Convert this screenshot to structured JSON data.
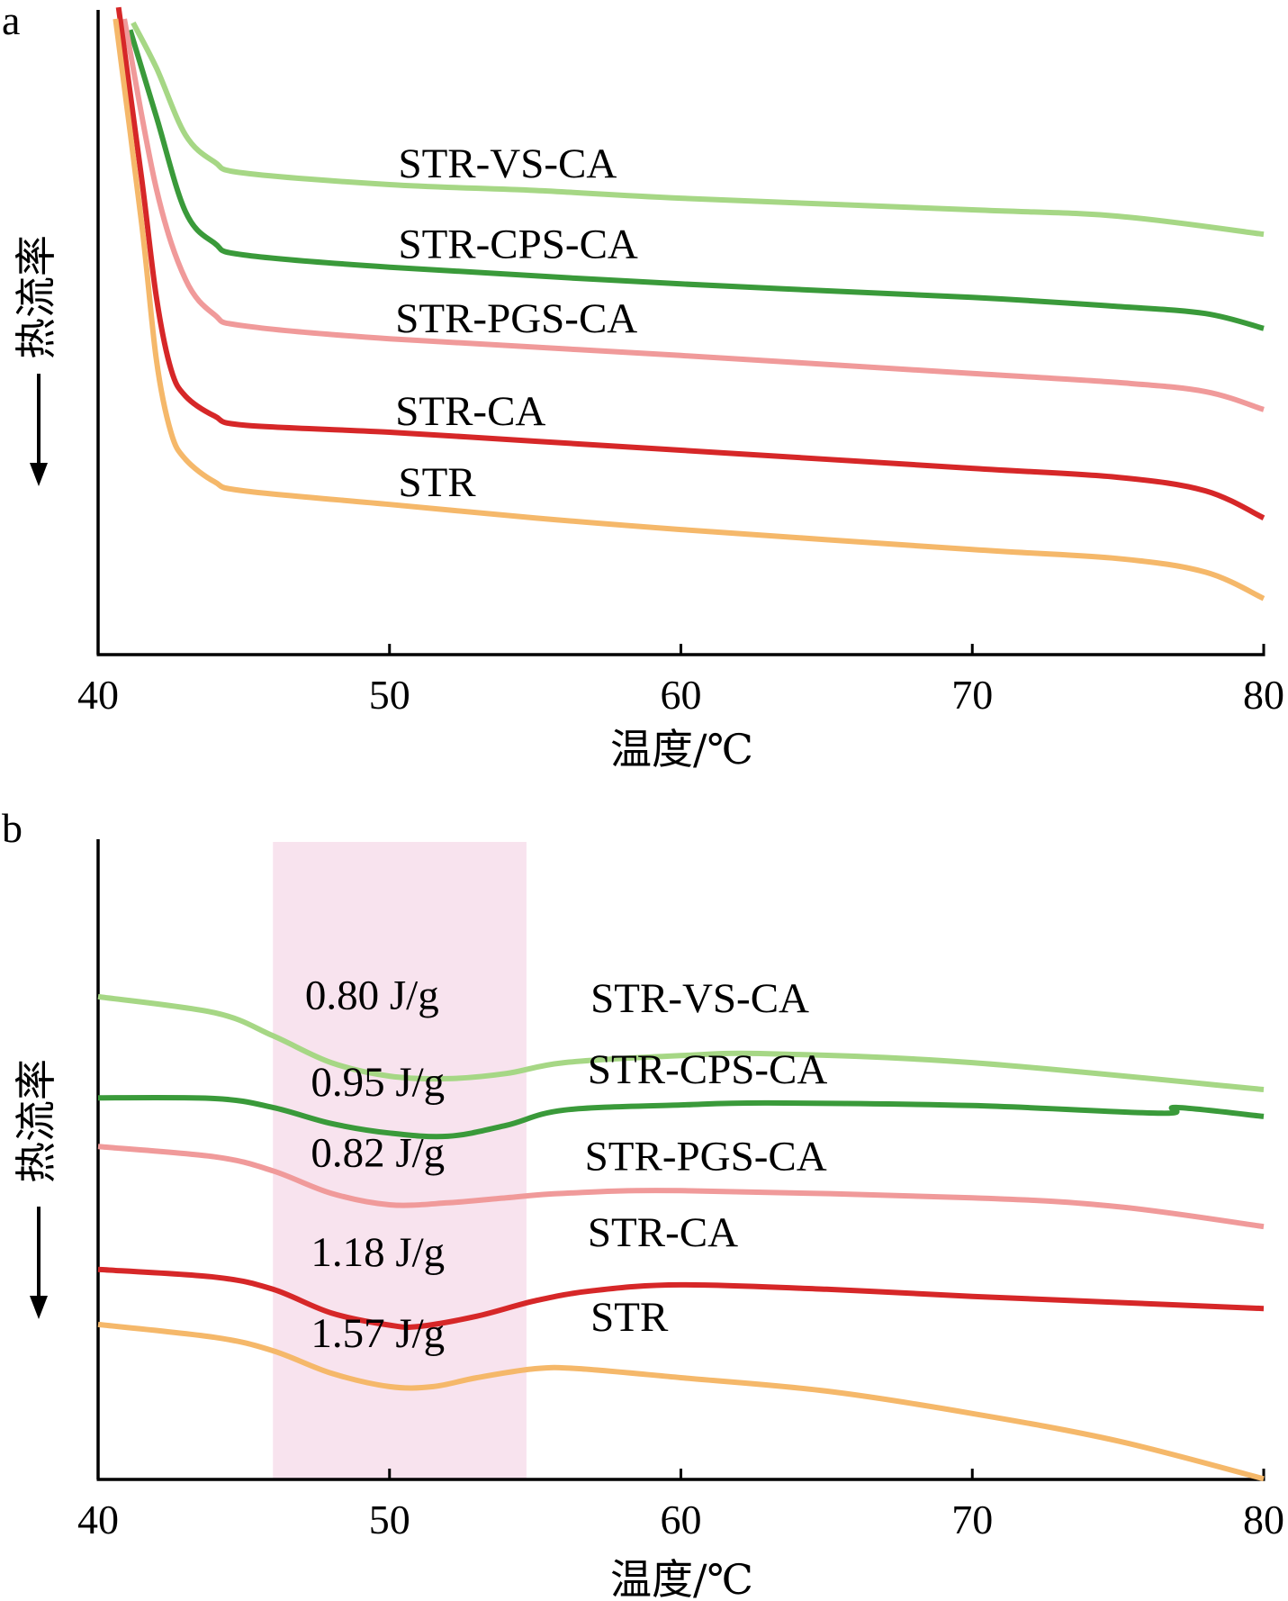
{
  "chart_data": [
    {
      "panel": "a",
      "type": "line",
      "title": "",
      "xlabel": "温度/℃",
      "ylabel": "热流率",
      "ylabel_arrow": "down",
      "xlim": [
        40,
        80
      ],
      "ylim": [
        0,
        100
      ],
      "y_units": "relative heat flow (arbitrary, exo-down)",
      "xticks": [
        40,
        50,
        60,
        70,
        80
      ],
      "grid": false,
      "legend": "inline labels",
      "series": [
        {
          "name": "STR-VS-CA",
          "color": "#a6d785",
          "x": [
            41.2,
            42,
            43,
            44,
            45,
            50,
            55,
            60,
            70,
            75,
            80
          ],
          "y": [
            98.0,
            91.0,
            80.6,
            76.4,
            74.7,
            72.9,
            72.0,
            70.8,
            69.0,
            68.0,
            65.2
          ],
          "label_at": [
            50.3,
            74.0
          ]
        },
        {
          "name": "STR-CPS-CA",
          "color": "#3a9a3a",
          "x": [
            41.1,
            42,
            43,
            44,
            45,
            50,
            60,
            70,
            75,
            78,
            80
          ],
          "y": [
            96.9,
            83.4,
            68.7,
            63.8,
            62.0,
            60.1,
            57.5,
            55.4,
            54.0,
            52.9,
            50.6
          ],
          "label_at": [
            50.3,
            61.5
          ]
        },
        {
          "name": "STR-PGS-CA",
          "color": "#f09a9a",
          "x": [
            40.9,
            42,
            43,
            44,
            45,
            50,
            60,
            70,
            75,
            78,
            80
          ],
          "y": [
            98.6,
            72.2,
            58.2,
            52.7,
            51.0,
            49.0,
            46.4,
            43.6,
            42.2,
            40.8,
            38.0
          ],
          "label_at": [
            50.2,
            50.0
          ]
        },
        {
          "name": "STR-CA",
          "color": "#d62728",
          "x": [
            40.7,
            41.5,
            42,
            42.5,
            43,
            44,
            45,
            50,
            55,
            60,
            70,
            75,
            78,
            80
          ],
          "y": [
            100.4,
            73.6,
            55.4,
            44.3,
            40.1,
            37.0,
            35.6,
            34.5,
            33.1,
            31.7,
            28.9,
            27.5,
            25.4,
            21.2
          ],
          "label_at": [
            50.2,
            35.6
          ]
        },
        {
          "name": "STR",
          "color": "#f5b86a",
          "x": [
            40.6,
            41.5,
            42,
            42.5,
            43,
            44,
            45,
            50,
            55,
            60,
            70,
            75,
            78,
            80
          ],
          "y": [
            98.6,
            66.6,
            45.7,
            34.5,
            30.3,
            26.8,
            25.4,
            23.3,
            21.2,
            19.4,
            16.3,
            14.9,
            12.8,
            8.7
          ],
          "label_at": [
            50.3,
            24.6
          ]
        }
      ]
    },
    {
      "panel": "b",
      "type": "line",
      "title": "",
      "xlabel": "温度/℃",
      "ylabel": "热流率",
      "ylabel_arrow": "down",
      "xlim": [
        40,
        80
      ],
      "ylim": [
        0,
        100
      ],
      "y_units": "relative heat flow (arbitrary, exo-down)",
      "xticks": [
        40,
        50,
        60,
        70,
        80
      ],
      "grid": false,
      "legend": "inline labels",
      "highlight_band": {
        "x_range": [
          46.0,
          54.7
        ],
        "color": "#f8e3ee"
      },
      "series": [
        {
          "name": "STR-VS-CA",
          "color": "#a6d785",
          "enthalpy": "0.80 J/g",
          "x": [
            40,
            44,
            46,
            48,
            50,
            52,
            54,
            56,
            60,
            63,
            70,
            80
          ],
          "y": [
            75.4,
            72.9,
            69.3,
            65.1,
            63.0,
            62.6,
            63.4,
            65.1,
            66.2,
            66.5,
            65.1,
            60.9
          ],
          "label_at": [
            56.9,
            73.0
          ],
          "enthalpy_at": [
            47.1,
            73.5
          ]
        },
        {
          "name": "STR-CPS-CA",
          "color": "#3a9a3a",
          "enthalpy": "0.95 J/g",
          "x": [
            40,
            44,
            46,
            48,
            50,
            52,
            54,
            56,
            60,
            63,
            70,
            76.5,
            77,
            80
          ],
          "y": [
            59.6,
            59.5,
            58.1,
            55.6,
            54.1,
            53.6,
            55.3,
            57.7,
            58.5,
            58.8,
            58.4,
            57.2,
            58.1,
            56.7
          ],
          "label_at": [
            56.8,
            61.9
          ],
          "enthalpy_at": [
            47.3,
            59.9
          ]
        },
        {
          "name": "STR-PGS-CA",
          "color": "#f09a9a",
          "enthalpy": "0.82 J/g",
          "x": [
            40,
            44,
            46,
            48,
            50,
            52,
            54,
            56,
            60,
            70,
            75,
            80
          ],
          "y": [
            52.0,
            50.4,
            48.2,
            44.7,
            42.9,
            43.2,
            44.0,
            44.7,
            45.1,
            44.0,
            42.6,
            39.5
          ],
          "label_at": [
            56.7,
            48.3
          ],
          "enthalpy_at": [
            47.3,
            48.9
          ]
        },
        {
          "name": "STR-CA",
          "color": "#d62728",
          "enthalpy": "1.18 J/g",
          "x": [
            40,
            44,
            46,
            48,
            50,
            51,
            53,
            55,
            57,
            60,
            65,
            70,
            80
          ],
          "y": [
            32.8,
            31.6,
            29.7,
            26.0,
            24.1,
            23.9,
            25.5,
            27.9,
            29.5,
            30.4,
            29.7,
            28.6,
            26.7
          ],
          "label_at": [
            56.8,
            36.4
          ],
          "enthalpy_at": [
            47.3,
            33.3
          ]
        },
        {
          "name": "STR",
          "color": "#f5b86a",
          "enthalpy": "1.57 J/g",
          "x": [
            40,
            44,
            46,
            48,
            50,
            51.5,
            53,
            55,
            56.5,
            60,
            65,
            70,
            75,
            80
          ],
          "y": [
            24.2,
            22.2,
            20.1,
            16.6,
            14.5,
            14.5,
            15.9,
            17.3,
            17.3,
            15.9,
            13.8,
            10.3,
            6.0,
            0.1
          ],
          "label_at": [
            56.9,
            23.2
          ],
          "enthalpy_at": [
            47.3,
            20.7
          ]
        }
      ]
    }
  ]
}
